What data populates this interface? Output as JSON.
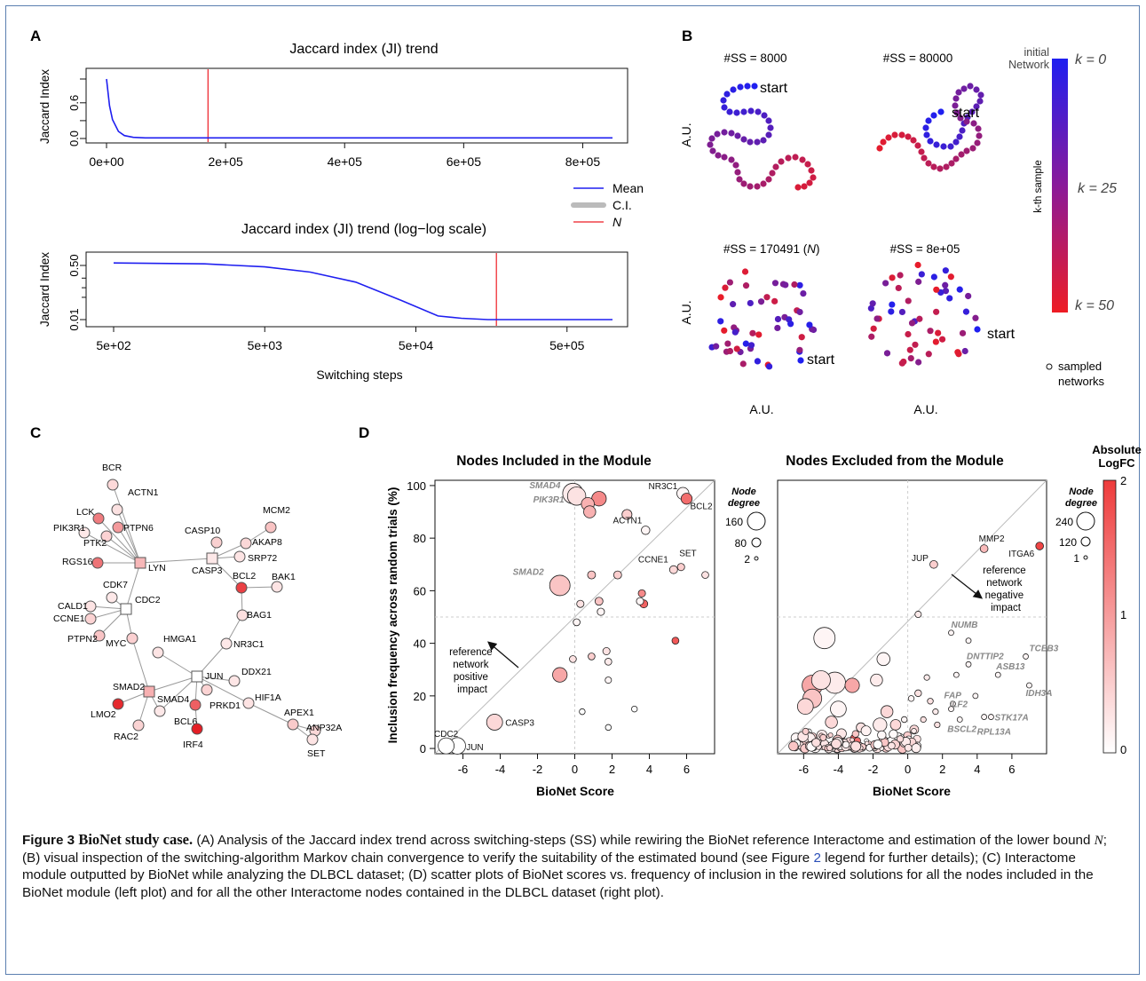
{
  "colors": {
    "blue": "#1f1ff0",
    "red": "#ee1c24",
    "grey": "#bbbbbb",
    "frame": "#5b7fb0"
  },
  "panel_labels": {
    "a": "A",
    "b": "B",
    "c": "C",
    "d": "D"
  },
  "panelA": {
    "title_top": "Jaccard index (JI) trend",
    "title_bottom": "Jaccard index (JI) trend (log−log scale)",
    "ylabel": "Jaccard Index",
    "xlabel": "Switching steps",
    "top_yticks": [
      "0.0",
      "0.6"
    ],
    "top_xticks": [
      "0e+00",
      "2e+05",
      "4e+05",
      "6e+05",
      "8e+05"
    ],
    "bottom_yticks": [
      "0.01",
      "0.50"
    ],
    "bottom_xticks": [
      "5e+02",
      "5e+03",
      "5e+04",
      "5e+05"
    ],
    "legend": [
      "Mean",
      "C.I.",
      "N"
    ]
  },
  "panelB": {
    "titles": [
      "#SS = 8000",
      "#SS = 80000",
      "#SS = 170491 (",
      "#SS = 8e+05"
    ],
    "title_n": "N",
    "title_close": ")",
    "start_label": "start",
    "axis_label": "A.U.",
    "colorbar_top": "initial Network",
    "colorbar_side": "k-th sample",
    "k0": "k = 0",
    "k25": "k = 25",
    "k50": "k = 50",
    "sampled": "sampled networks"
  },
  "panelC": {
    "nodes": [
      "BCR",
      "ACTN1",
      "LCK",
      "PTPN6",
      "PIK3R1",
      "PTK2",
      "RGS16",
      "LYN",
      "CDK7",
      "CALD1",
      "CDC2",
      "CCNE1",
      "PTPN2",
      "MYC",
      "HMGA1",
      "SMAD2",
      "LMO2",
      "SMAD4",
      "RAC2",
      "JUN",
      "BCL6",
      "IRF4",
      "PRKD1",
      "CASP10",
      "CASP3",
      "SRP72",
      "MCM2",
      "AKAP8",
      "BCL2",
      "BAK1",
      "BAG1",
      "NR3C1",
      "DDX21",
      "HIF1A",
      "APEX1",
      "ANP32A",
      "SET"
    ]
  },
  "panelD": {
    "left_title": "Nodes Included in the Module",
    "right_title": "Nodes Excluded from the Module",
    "ylabel": "Inclusion frequency across random trials (%)",
    "xlabel": "BioNet Score",
    "xticks": [
      "-6",
      "-4",
      "-2",
      "0",
      "2",
      "4",
      "6"
    ],
    "yticks": [
      "0",
      "20",
      "40",
      "60",
      "80",
      "100"
    ],
    "positive_note": [
      "reference",
      "network",
      "positive",
      "impact"
    ],
    "negative_note": [
      "reference",
      "network",
      "negative",
      "impact"
    ],
    "node_degree_label": [
      "Node",
      "degree"
    ],
    "left_size_legend": [
      "160",
      "80",
      "2"
    ],
    "right_size_legend": [
      "240",
      "120",
      "1"
    ],
    "colorbar_title": [
      "Absolute",
      "LogFC"
    ],
    "colorbar_ticks": [
      "2",
      "1",
      "0"
    ]
  },
  "chart_data": [
    {
      "type": "line",
      "title": "Jaccard index (JI) trend",
      "xlabel": "",
      "ylabel": "Jaccard Index",
      "xlim": [
        0,
        850000
      ],
      "ylim": [
        0,
        1
      ],
      "grid": false,
      "legend_position": "right",
      "vertical_line": {
        "name": "N",
        "x": 170491
      },
      "series": [
        {
          "name": "Mean",
          "x": [
            0,
            5000,
            10000,
            20000,
            30000,
            45000,
            65000,
            100000,
            850000
          ],
          "y": [
            1.0,
            0.55,
            0.32,
            0.12,
            0.05,
            0.02,
            0.01,
            0.01,
            0.01
          ]
        }
      ]
    },
    {
      "type": "line",
      "title": "Jaccard index (JI) trend (log−log scale)",
      "xlabel": "Switching steps",
      "ylabel": "Jaccard Index",
      "x_scale": "log",
      "y_scale": "log",
      "xlim": [
        500,
        1000000
      ],
      "ylim": [
        0.008,
        0.75
      ],
      "grid": false,
      "vertical_line": {
        "name": "N",
        "x": 170491
      },
      "series": [
        {
          "name": "Mean",
          "x": [
            500,
            2000,
            5000,
            10000,
            20000,
            40000,
            70000,
            100000,
            150000,
            300000,
            1000000
          ],
          "y": [
            0.6,
            0.56,
            0.45,
            0.31,
            0.15,
            0.04,
            0.013,
            0.011,
            0.01,
            0.01,
            0.01
          ]
        }
      ]
    },
    {
      "type": "scatter",
      "title": "Nodes Included in the Module",
      "xlabel": "BioNet Score",
      "ylabel": "Inclusion frequency across random trials (%)",
      "xlim": [
        -7.5,
        7.5
      ],
      "ylim": [
        -2,
        102
      ],
      "grid": false,
      "points": [
        {
          "label": "SMAD4",
          "x": -0.1,
          "y": 97,
          "degree": 90,
          "logfc": 0.2
        },
        {
          "label": "PIK3R1",
          "x": 0.1,
          "y": 96,
          "degree": 70,
          "logfc": 0.3
        },
        {
          "label": "",
          "x": 1.3,
          "y": 95,
          "degree": 40,
          "logfc": 1.2
        },
        {
          "label": "",
          "x": 0.7,
          "y": 93,
          "degree": 30,
          "logfc": 0.8
        },
        {
          "label": "",
          "x": 0.8,
          "y": 90,
          "degree": 25,
          "logfc": 0.8
        },
        {
          "label": "",
          "x": 2.8,
          "y": 89,
          "degree": 15,
          "logfc": 0.5
        },
        {
          "label": "NR3C1",
          "x": 5.8,
          "y": 97,
          "degree": 25,
          "logfc": 0.1
        },
        {
          "label": "BCL2",
          "x": 6.0,
          "y": 95,
          "degree": 20,
          "logfc": 1.5
        },
        {
          "label": "ACTN1",
          "x": 3.8,
          "y": 83,
          "degree": 10,
          "logfc": 0.1
        },
        {
          "label": "SMAD2",
          "x": -0.8,
          "y": 62,
          "degree": 90,
          "logfc": 0.6
        },
        {
          "label": "",
          "x": 0.9,
          "y": 66,
          "degree": 8,
          "logfc": 0.6
        },
        {
          "label": "",
          "x": 2.3,
          "y": 66,
          "degree": 8,
          "logfc": 0.5
        },
        {
          "label": "CCNE1",
          "x": 5.3,
          "y": 68,
          "degree": 8,
          "logfc": 0.4
        },
        {
          "label": "SET",
          "x": 5.7,
          "y": 69,
          "degree": 6,
          "logfc": 0.5
        },
        {
          "label": "",
          "x": 7.0,
          "y": 66,
          "degree": 5,
          "logfc": 0.3
        },
        {
          "label": "",
          "x": 3.6,
          "y": 59,
          "degree": 6,
          "logfc": 1.2
        },
        {
          "label": "",
          "x": 3.5,
          "y": 56,
          "degree": 6,
          "logfc": 0.1
        },
        {
          "label": "",
          "x": 3.7,
          "y": 55,
          "degree": 8,
          "logfc": 1.6
        },
        {
          "label": "",
          "x": 1.3,
          "y": 56,
          "degree": 8,
          "logfc": 0.6
        },
        {
          "label": "",
          "x": 0.3,
          "y": 55,
          "degree": 6,
          "logfc": 0.3
        },
        {
          "label": "",
          "x": 1.4,
          "y": 52,
          "degree": 6,
          "logfc": 0.1
        },
        {
          "label": "",
          "x": 0.1,
          "y": 48,
          "degree": 5,
          "logfc": 0.1
        },
        {
          "label": "",
          "x": 5.4,
          "y": 41,
          "degree": 5,
          "logfc": 1.7
        },
        {
          "label": "",
          "x": 1.7,
          "y": 37,
          "degree": 6,
          "logfc": 0.3
        },
        {
          "label": "",
          "x": 0.9,
          "y": 35,
          "degree": 5,
          "logfc": 0.5
        },
        {
          "label": "",
          "x": -0.1,
          "y": 34,
          "degree": 5,
          "logfc": 0.3
        },
        {
          "label": "",
          "x": 1.8,
          "y": 33,
          "degree": 5,
          "logfc": 0.2
        },
        {
          "label": "",
          "x": -0.8,
          "y": 28,
          "degree": 40,
          "logfc": 0.9
        },
        {
          "label": "",
          "x": 1.8,
          "y": 26,
          "degree": 4,
          "logfc": 0.1
        },
        {
          "label": "",
          "x": 3.2,
          "y": 15,
          "degree": 3,
          "logfc": 0.0
        },
        {
          "label": "",
          "x": 0.4,
          "y": 14,
          "degree": 3,
          "logfc": 0.0
        },
        {
          "label": "",
          "x": 1.8,
          "y": 8,
          "degree": 3,
          "logfc": 0.0
        },
        {
          "label": "CASP3",
          "x": -4.3,
          "y": 10,
          "degree": 50,
          "logfc": 0.4
        },
        {
          "label": "CDC2",
          "x": -6.9,
          "y": 1,
          "degree": 50,
          "logfc": 0.0
        },
        {
          "label": "JUN",
          "x": -6.3,
          "y": 1,
          "degree": 55,
          "logfc": 0.0
        }
      ]
    },
    {
      "type": "scatter",
      "title": "Nodes Excluded from the Module",
      "xlabel": "BioNet Score",
      "ylabel": "",
      "xlim": [
        -7.5,
        8
      ],
      "ylim": [
        -2,
        102
      ],
      "grid": false,
      "points": [
        {
          "label": "ITGA6",
          "x": 7.6,
          "y": 77,
          "degree": 15,
          "logfc": 1.9
        },
        {
          "label": "MMP2",
          "x": 4.4,
          "y": 76,
          "degree": 15,
          "logfc": 0.7
        },
        {
          "label": "JUP",
          "x": 1.5,
          "y": 70,
          "degree": 15,
          "logfc": 0.5
        },
        {
          "label": "",
          "x": 0.6,
          "y": 51,
          "degree": 8,
          "logfc": 0.2
        },
        {
          "label": "NUMB",
          "x": 2.5,
          "y": 44,
          "degree": 4,
          "logfc": 0.1
        },
        {
          "label": "TCEB3",
          "x": 6.8,
          "y": 35,
          "degree": 4,
          "logfc": 0.1
        },
        {
          "label": "DNTTIP2",
          "x": 3.5,
          "y": 32,
          "degree": 4,
          "logfc": 0.1
        },
        {
          "label": "ASB13",
          "x": 5.2,
          "y": 28,
          "degree": 4,
          "logfc": 0.1
        },
        {
          "label": "IDH3A",
          "x": 7.0,
          "y": 24,
          "degree": 4,
          "logfc": 0.1
        },
        {
          "label": "FAP",
          "x": 2.6,
          "y": 17,
          "degree": 4,
          "logfc": 0.1
        },
        {
          "label": "ILF2",
          "x": 2.5,
          "y": 15,
          "degree": 4,
          "logfc": 0.1
        },
        {
          "label": "STK17A",
          "x": 4.8,
          "y": 12,
          "degree": 4,
          "logfc": 0.1
        },
        {
          "label": "BSCL2",
          "x": 3.0,
          "y": 11,
          "degree": 4,
          "logfc": 0.1
        },
        {
          "label": "RPL13A",
          "x": 4.4,
          "y": 12,
          "degree": 4,
          "logfc": 0.1
        },
        {
          "label": "",
          "x": -4.8,
          "y": 42,
          "degree": 200,
          "logfc": 0.1
        },
        {
          "label": "",
          "x": -1.4,
          "y": 34,
          "degree": 60,
          "logfc": 0.1
        },
        {
          "label": "",
          "x": -5.0,
          "y": 26,
          "degree": 150,
          "logfc": 0.3
        },
        {
          "label": "",
          "x": -4.2,
          "y": 25,
          "degree": 200,
          "logfc": 0.2
        },
        {
          "label": "",
          "x": -3.2,
          "y": 24,
          "degree": 80,
          "logfc": 0.9
        },
        {
          "label": "",
          "x": -5.5,
          "y": 24,
          "degree": 180,
          "logfc": 0.9
        },
        {
          "label": "",
          "x": -1.8,
          "y": 26,
          "degree": 50,
          "logfc": 0.2
        },
        {
          "label": "",
          "x": -5.5,
          "y": 19,
          "degree": 150,
          "logfc": 0.6
        },
        {
          "label": "",
          "x": -5.9,
          "y": 16,
          "degree": 100,
          "logfc": 0.4
        },
        {
          "label": "",
          "x": -4.0,
          "y": 15,
          "degree": 100,
          "logfc": 0.1
        },
        {
          "label": "",
          "x": -1.2,
          "y": 14,
          "degree": 50,
          "logfc": 0.4
        },
        {
          "label": "",
          "x": -1.6,
          "y": 9,
          "degree": 70,
          "logfc": 0.2
        },
        {
          "label": "",
          "x": -0.7,
          "y": 9,
          "degree": 35,
          "logfc": 0.4
        },
        {
          "label": "",
          "x": -4.4,
          "y": 10,
          "degree": 50,
          "logfc": 0.4
        },
        {
          "label": "",
          "x": -2.7,
          "y": 8,
          "degree": 25,
          "logfc": 0.3
        },
        {
          "label": "",
          "x": 0.6,
          "y": 21,
          "degree": 10,
          "logfc": 0.3
        },
        {
          "label": "",
          "x": 1.3,
          "y": 18,
          "degree": 6,
          "logfc": 0.3
        },
        {
          "label": "",
          "x": 1.6,
          "y": 14,
          "degree": 5,
          "logfc": 0.2
        },
        {
          "label": "",
          "x": 0.9,
          "y": 11,
          "degree": 5,
          "logfc": 0.3
        },
        {
          "label": "",
          "x": 1.7,
          "y": 9,
          "degree": 5,
          "logfc": 0.3
        },
        {
          "label": "",
          "x": 0.2,
          "y": 19,
          "degree": 6,
          "logfc": 0.1
        },
        {
          "label": "",
          "x": 3.5,
          "y": 41,
          "degree": 4,
          "logfc": 0.1
        },
        {
          "label": "",
          "x": 2.8,
          "y": 28,
          "degree": 4,
          "logfc": 0.1
        },
        {
          "label": "",
          "x": 3.9,
          "y": 20,
          "degree": 4,
          "logfc": 0.1
        },
        {
          "label": "",
          "x": 1.1,
          "y": 27,
          "degree": 5,
          "logfc": 0.2
        },
        {
          "label": "",
          "x": -0.2,
          "y": 11,
          "degree": 6,
          "logfc": 0.1
        },
        {
          "label": "",
          "x": -3.1,
          "y": 4,
          "degree": 10,
          "logfc": 1.7
        },
        {
          "label": "",
          "x": -2.9,
          "y": 3,
          "degree": 8,
          "logfc": 1.5
        }
      ]
    }
  ]
}
